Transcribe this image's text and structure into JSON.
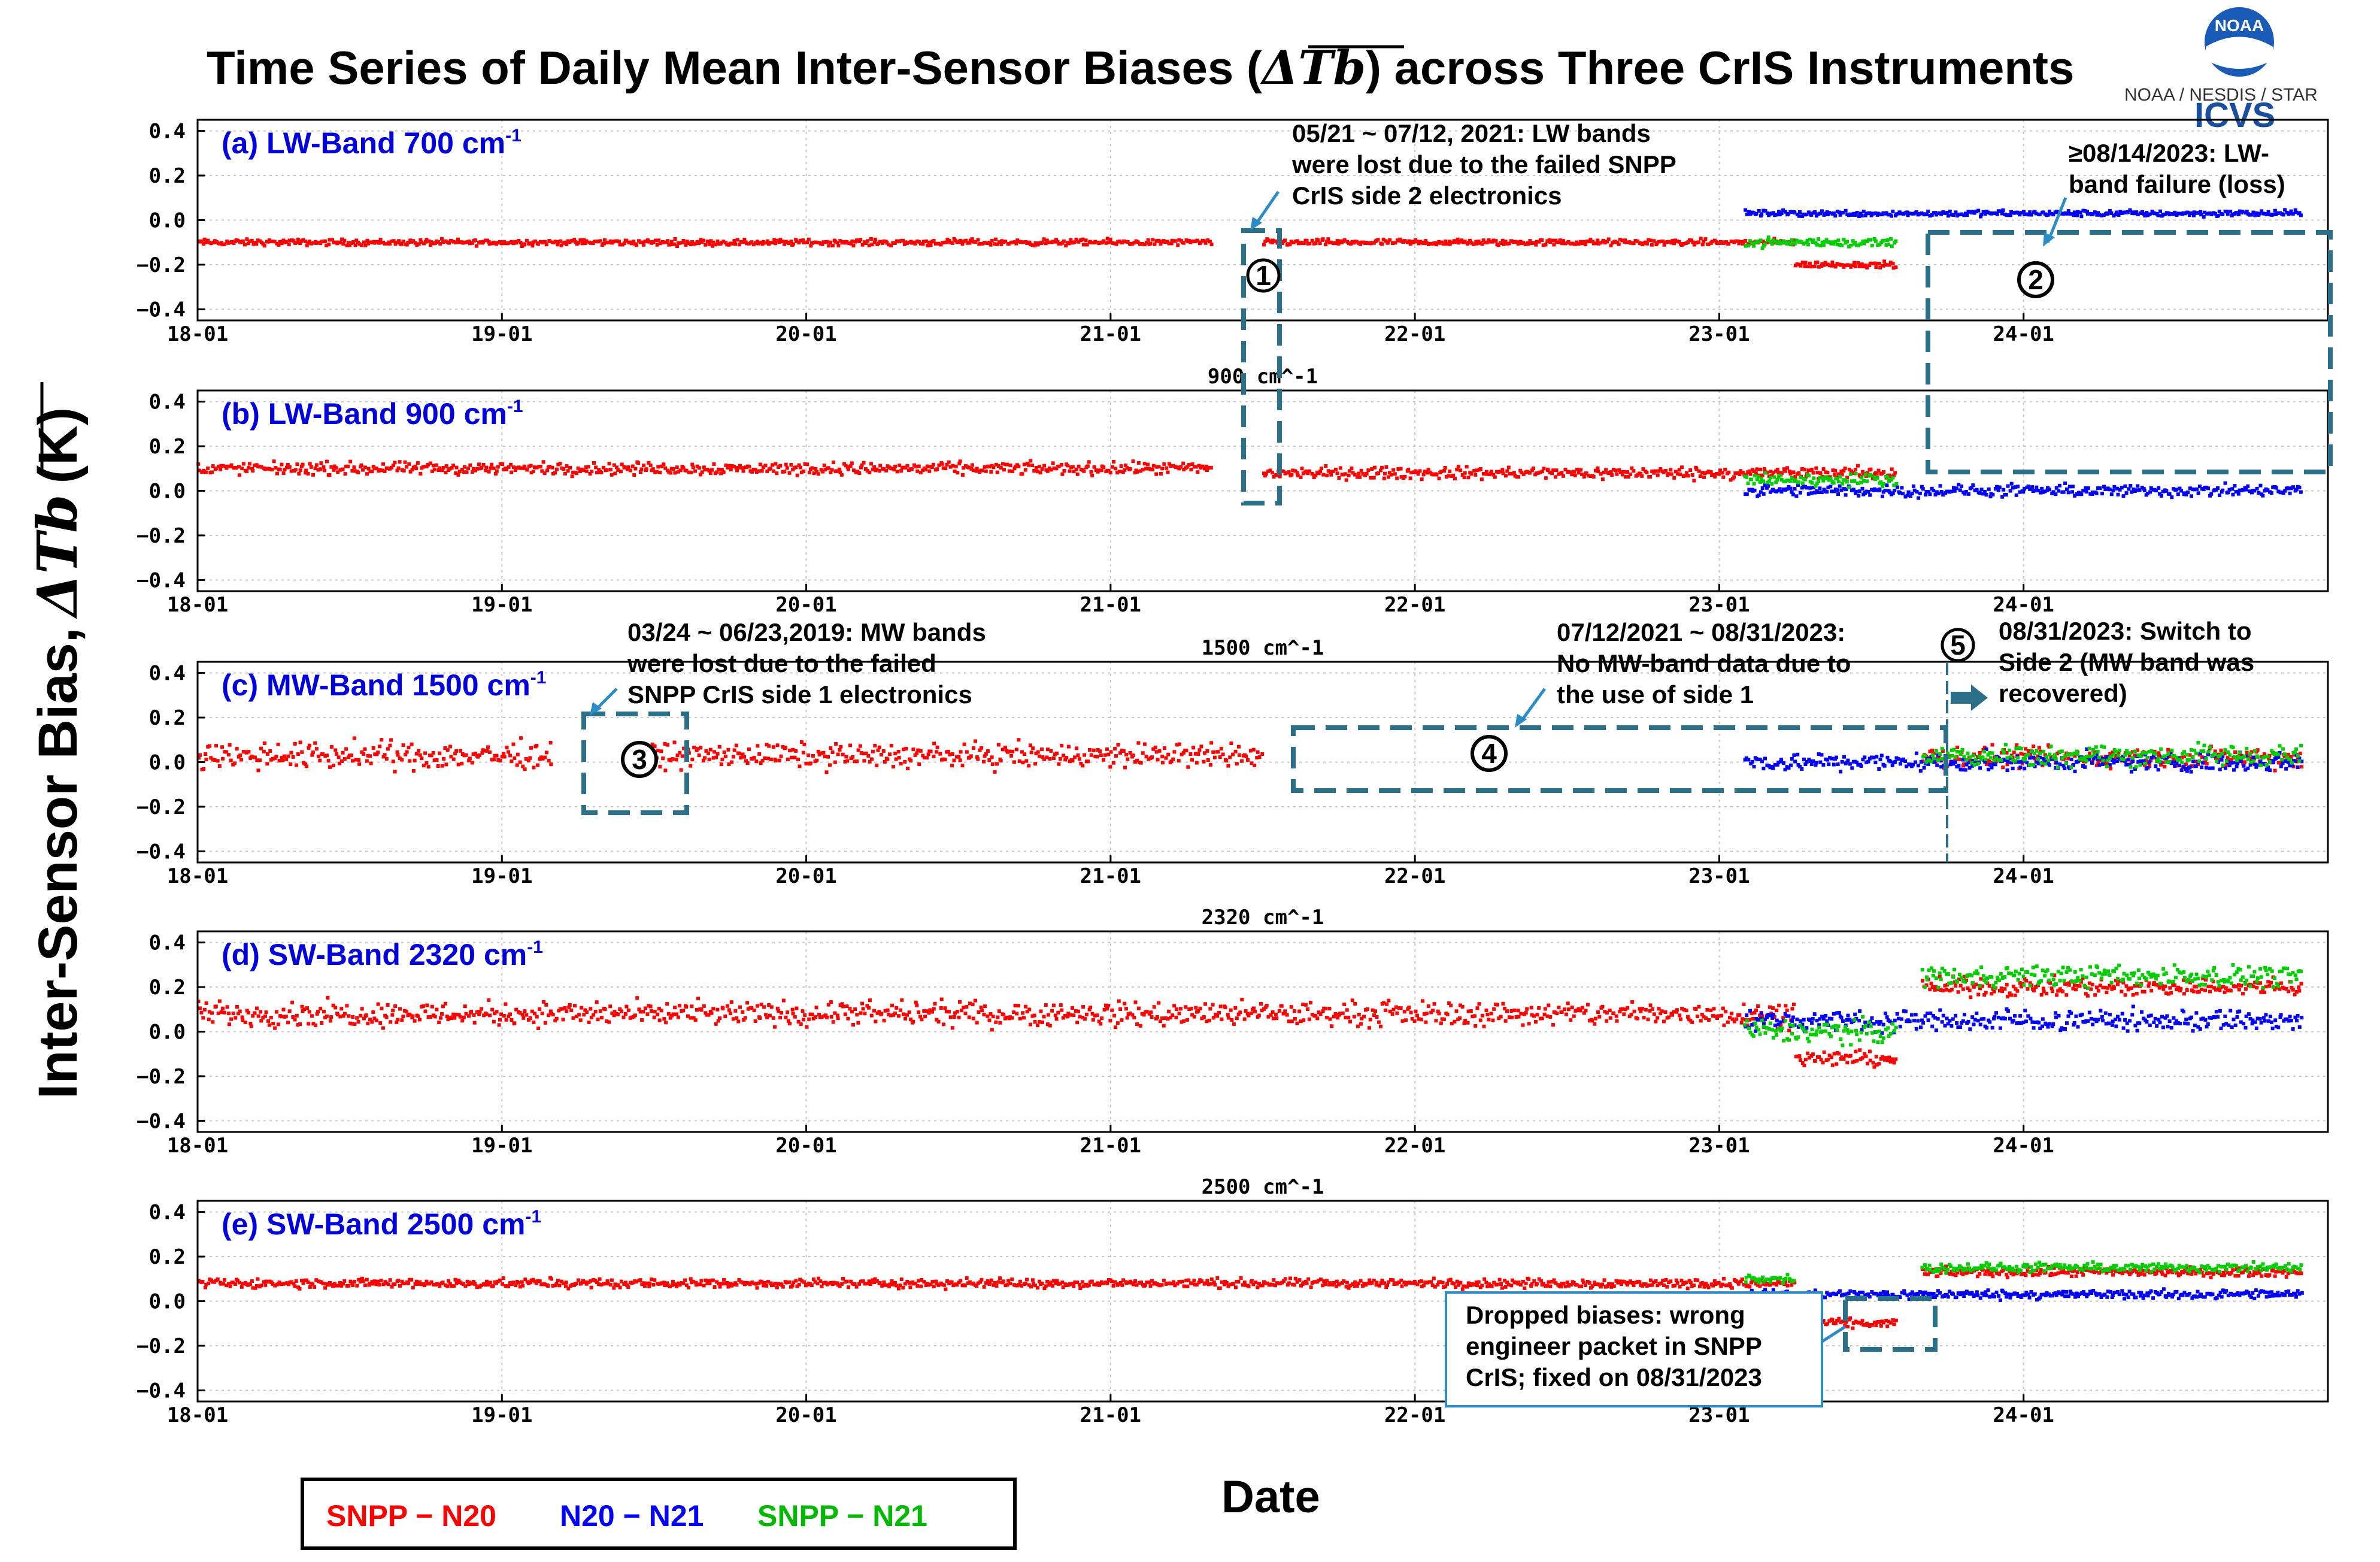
{
  "figure": {
    "title_part1": "Time Series of Daily Mean Inter-Sensor Biases (",
    "title_symbol": "ΔTb",
    "title_part2": ") across Three CrIS Instruments",
    "ylabel_text": "Inter-Sensor Bias,",
    "ylabel_symbol": "ΔTb",
    "ylabel_unit": "(K)",
    "xlabel": "Date",
    "logo_org": "NOAA",
    "logo_line": "NOAA / NESDIS / STAR",
    "logo_brand": "ICVS"
  },
  "legend": [
    {
      "label": "SNPP − N20",
      "color": "#ff0000"
    },
    {
      "label": "N20 − N21",
      "color": "#0000ff"
    },
    {
      "label": "SNPP − N21",
      "color": "#00b800"
    }
  ],
  "colors": {
    "snpp_n20": "#ff0000",
    "n20_n21": "#0000ff",
    "snpp_n21": "#00cc00",
    "annotation": "#2c6f88",
    "panel_label": "#0000dd"
  },
  "annotations": {
    "note1": [
      "05/21 ~ 07/12, 2021: LW bands",
      "were lost due to the failed SNPP",
      "CrIS side 2 electronics"
    ],
    "note2": [
      "≥08/14/2023: LW-",
      "band failure (loss)"
    ],
    "note3": [
      "03/24 ~ 06/23,2019: MW bands",
      "were lost due to the failed",
      "SNPP CrIS side 1 electronics"
    ],
    "note4": [
      "07/12/2021 ~ 08/31/2023:",
      "No MW-band data due to",
      "the use of side 1"
    ],
    "note5": [
      "08/31/2023: Switch to",
      "Side 2 (MW band was",
      "recovered)"
    ],
    "note6": [
      "Dropped biases: wrong",
      "engineer packet in SNPP",
      "CrIS; fixed on 08/31/2023"
    ],
    "markers": [
      "1",
      "2",
      "3",
      "4",
      "5"
    ]
  },
  "chart_data": [
    {
      "type": "scatter",
      "label": "(a) LW-Band 700 cm",
      "label_sup": "-1",
      "plot_title": "",
      "x_tick_labels": [
        "18-01",
        "19-01",
        "20-01",
        "21-01",
        "22-01",
        "23-01",
        "24-01"
      ],
      "x_range": [
        "2018-01",
        "2024-12"
      ],
      "ylim": [
        -0.45,
        0.45
      ],
      "yticks": [
        "0.4",
        "0.2",
        "0.0",
        "−0.2",
        "−0.4"
      ],
      "series": [
        {
          "name": "SNPP − N20",
          "segments": [
            {
              "from": "2018-01",
              "to": "2021-05",
              "mean": -0.1,
              "spread": 0.02
            },
            {
              "from": "2021-07",
              "to": "2023-04",
              "mean": -0.1,
              "spread": 0.02
            },
            {
              "from": "2023-04",
              "to": "2023-08",
              "mean": -0.2,
              "spread": 0.02
            }
          ]
        },
        {
          "name": "N20 − N21",
          "segments": [
            {
              "from": "2023-02",
              "to": "2024-12",
              "mean": 0.03,
              "spread": 0.02
            }
          ]
        },
        {
          "name": "SNPP − N21",
          "segments": [
            {
              "from": "2023-02",
              "to": "2023-08",
              "mean": -0.1,
              "spread": 0.03
            }
          ]
        }
      ]
    },
    {
      "type": "scatter",
      "label": "(b) LW-Band 900 cm",
      "label_sup": "-1",
      "plot_title": "900 cm^-1",
      "x_tick_labels": [
        "18-01",
        "19-01",
        "20-01",
        "21-01",
        "22-01",
        "23-01",
        "24-01"
      ],
      "x_range": [
        "2018-01",
        "2024-12"
      ],
      "ylim": [
        -0.45,
        0.45
      ],
      "yticks": [
        "0.4",
        "0.2",
        "0.0",
        "−0.2",
        "−0.4"
      ],
      "series": [
        {
          "name": "SNPP − N20",
          "segments": [
            {
              "from": "2018-01",
              "to": "2021-05",
              "mean": 0.1,
              "spread": 0.04
            },
            {
              "from": "2021-07",
              "to": "2023-08",
              "mean": 0.08,
              "spread": 0.04
            }
          ]
        },
        {
          "name": "N20 − N21",
          "segments": [
            {
              "from": "2023-02",
              "to": "2024-12",
              "mean": 0.0,
              "spread": 0.04
            }
          ]
        },
        {
          "name": "SNPP − N21",
          "segments": [
            {
              "from": "2023-02",
              "to": "2023-08",
              "mean": 0.05,
              "spread": 0.04
            }
          ]
        }
      ]
    },
    {
      "type": "scatter",
      "label": "(c) MW-Band 1500 cm",
      "label_sup": "-1",
      "plot_title": "1500 cm^-1",
      "x_tick_labels": [
        "18-01",
        "19-01",
        "20-01",
        "21-01",
        "22-01",
        "23-01",
        "24-01"
      ],
      "x_range": [
        "2018-01",
        "2024-12"
      ],
      "ylim": [
        -0.45,
        0.45
      ],
      "yticks": [
        "0.4",
        "0.2",
        "0.0",
        "−0.2",
        "−0.4"
      ],
      "series": [
        {
          "name": "SNPP − N20",
          "segments": [
            {
              "from": "2018-01",
              "to": "2019-03",
              "mean": 0.03,
              "spread": 0.09
            },
            {
              "from": "2019-06",
              "to": "2021-07",
              "mean": 0.03,
              "spread": 0.08
            },
            {
              "from": "2023-09",
              "to": "2024-12",
              "mean": 0.02,
              "spread": 0.07
            }
          ]
        },
        {
          "name": "N20 − N21",
          "segments": [
            {
              "from": "2023-02",
              "to": "2024-12",
              "mean": 0.0,
              "spread": 0.06
            }
          ]
        },
        {
          "name": "SNPP − N21",
          "segments": [
            {
              "from": "2023-09",
              "to": "2024-12",
              "mean": 0.03,
              "spread": 0.07
            }
          ]
        }
      ]
    },
    {
      "type": "scatter",
      "label": "(d) SW-Band 2320 cm",
      "label_sup": "-1",
      "plot_title": "2320 cm^-1",
      "x_tick_labels": [
        "18-01",
        "19-01",
        "20-01",
        "21-01",
        "22-01",
        "23-01",
        "24-01"
      ],
      "x_range": [
        "2018-01",
        "2024-12"
      ],
      "ylim": [
        -0.45,
        0.45
      ],
      "yticks": [
        "0.4",
        "0.2",
        "0.0",
        "−0.2",
        "−0.4"
      ],
      "series": [
        {
          "name": "SNPP − N20",
          "segments": [
            {
              "from": "2018-01",
              "to": "2023-04",
              "mean": 0.08,
              "spread": 0.08
            },
            {
              "from": "2023-04",
              "to": "2023-08",
              "mean": -0.12,
              "spread": 0.05
            },
            {
              "from": "2023-09",
              "to": "2024-12",
              "mean": 0.2,
              "spread": 0.06
            }
          ]
        },
        {
          "name": "N20 − N21",
          "segments": [
            {
              "from": "2023-02",
              "to": "2024-12",
              "mean": 0.05,
              "spread": 0.07
            }
          ]
        },
        {
          "name": "SNPP − N21",
          "segments": [
            {
              "from": "2023-02",
              "to": "2023-08",
              "mean": 0.0,
              "spread": 0.08
            },
            {
              "from": "2023-09",
              "to": "2024-12",
              "mean": 0.25,
              "spread": 0.07
            }
          ]
        }
      ]
    },
    {
      "type": "scatter",
      "label": "(e) SW-Band 2500 cm",
      "label_sup": "-1",
      "plot_title": "2500 cm^-1",
      "x_tick_labels": [
        "18-01",
        "19-01",
        "20-01",
        "21-01",
        "22-01",
        "23-01",
        "24-01"
      ],
      "x_range": [
        "2018-01",
        "2024-12"
      ],
      "ylim": [
        -0.45,
        0.45
      ],
      "yticks": [
        "0.4",
        "0.2",
        "0.0",
        "−0.2",
        "−0.4"
      ],
      "series": [
        {
          "name": "SNPP − N20",
          "segments": [
            {
              "from": "2018-01",
              "to": "2023-04",
              "mean": 0.08,
              "spread": 0.03
            },
            {
              "from": "2023-04",
              "to": "2023-08",
              "mean": -0.1,
              "spread": 0.03
            },
            {
              "from": "2023-09",
              "to": "2024-12",
              "mean": 0.13,
              "spread": 0.03
            }
          ]
        },
        {
          "name": "N20 − N21",
          "segments": [
            {
              "from": "2023-02",
              "to": "2024-12",
              "mean": 0.03,
              "spread": 0.03
            }
          ]
        },
        {
          "name": "SNPP − N21",
          "segments": [
            {
              "from": "2023-02",
              "to": "2023-04",
              "mean": 0.1,
              "spread": 0.03
            },
            {
              "from": "2023-09",
              "to": "2024-12",
              "mean": 0.15,
              "spread": 0.03
            }
          ]
        }
      ]
    }
  ]
}
